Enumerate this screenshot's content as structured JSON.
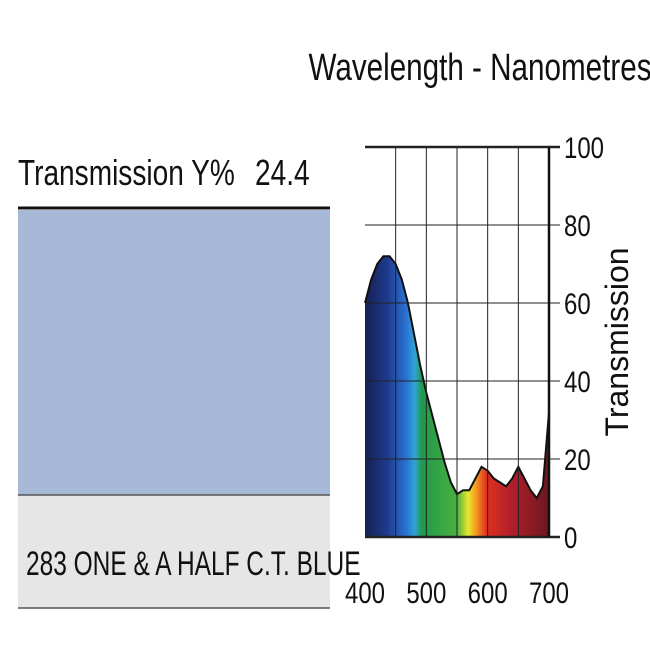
{
  "filter": {
    "transmission_label": "Transmission Y%",
    "transmission_value": 24.4,
    "name": "283 ONE & A HALF C.T. BLUE",
    "color": "#a7b9d7"
  },
  "chart_data": {
    "type": "area",
    "title": "Wavelength - Nanometres",
    "y_label": "Transmission",
    "x": [
      400,
      410,
      420,
      430,
      440,
      450,
      460,
      470,
      480,
      490,
      500,
      510,
      520,
      530,
      540,
      550,
      560,
      570,
      580,
      590,
      600,
      610,
      620,
      630,
      640,
      650,
      660,
      670,
      680,
      690,
      700
    ],
    "values": [
      60,
      66,
      70,
      72,
      72,
      70,
      66,
      60,
      52,
      44,
      37,
      31,
      25,
      19,
      14,
      11,
      12,
      12,
      15,
      18,
      17,
      15,
      14,
      13,
      15,
      18,
      15,
      12,
      10,
      13,
      32
    ],
    "color": "#111111",
    "xlim": [
      400,
      700
    ],
    "ylim": [
      0,
      100
    ],
    "xticks": [
      400,
      500,
      600,
      700
    ],
    "yticks": [
      0,
      20,
      40,
      60,
      80,
      100
    ],
    "grid": true
  }
}
